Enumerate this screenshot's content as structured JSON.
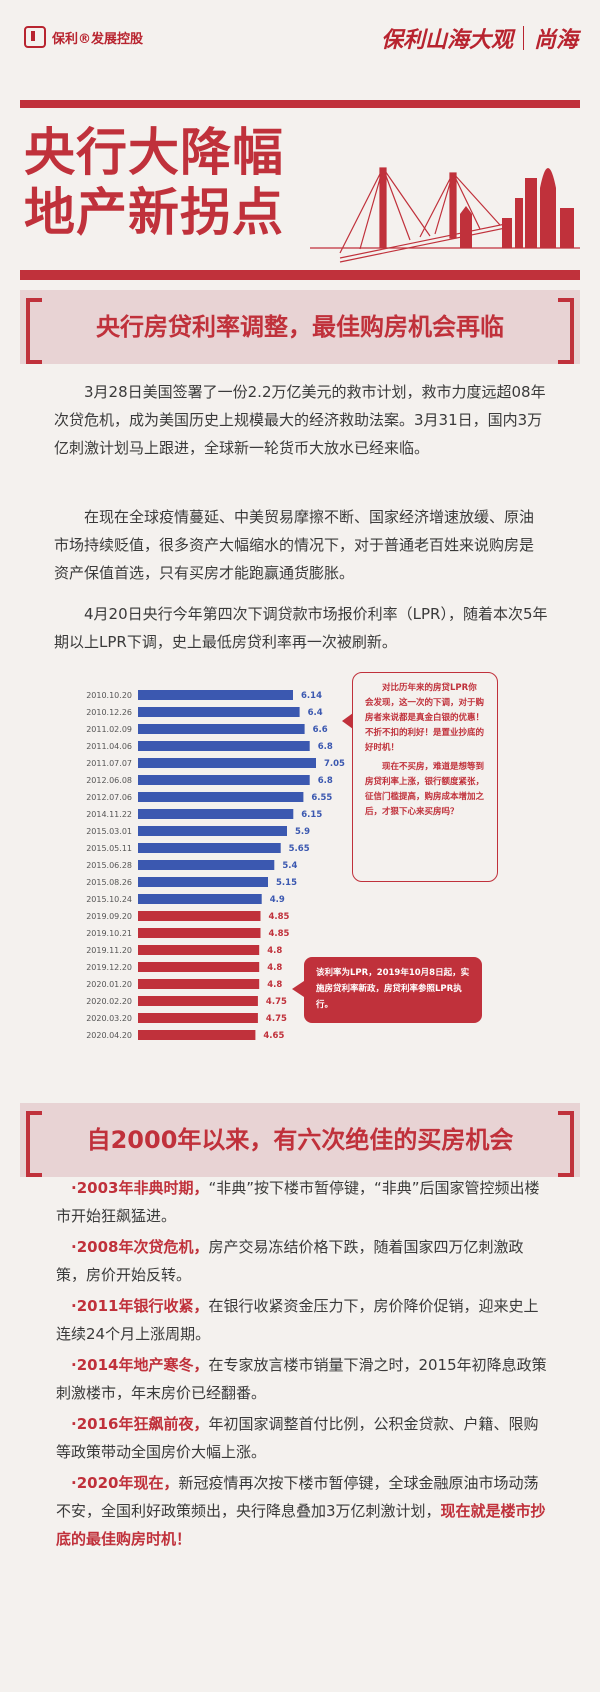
{
  "header": {
    "left_logo": "保利®发展控股",
    "right_logo_a": "保利山海大观",
    "right_logo_b": "尚海"
  },
  "hero": {
    "title_line1": "央行大降幅",
    "title_line2": "地产新拐点"
  },
  "section1": {
    "heading": "央行房贷利率调整，最佳购房机会再临",
    "paragraphs": [
      "3月28日美国签署了一份2.2万亿美元的救市计划，救市力度远超08年次贷危机，成为美国历史上规模最大的经济救助法案。3月31日，国内3万亿刺激计划马上跟进，全球新一轮货币大放水已经来临。",
      "在现在全球疫情蔓延、中美贸易摩擦不断、国家经济增速放缓、原油市场持续贬值，很多资产大幅缩水的情况下，对于普通老百姓来说购房是资产保值首选，只有买房才能跑赢通货膨胀。",
      "4月20日央行今年第四次下调贷款市场报价利率（LPR），随着本次5年期以上LPR下调，史上最低房贷利率再一次被刷新。"
    ]
  },
  "colors": {
    "accent": "#c0313b",
    "blue_series": "#3b58b0",
    "red_series": "#c0313b",
    "panel": "#e8d3d4"
  },
  "chart_data": {
    "type": "bar",
    "orientation": "horizontal",
    "categories": [
      "2010.10.20",
      "2010.12.26",
      "2011.02.09",
      "2011.04.06",
      "2011.07.07",
      "2012.06.08",
      "2012.07.06",
      "2014.11.22",
      "2015.03.01",
      "2015.05.11",
      "2015.06.28",
      "2015.08.26",
      "2015.10.24",
      "2019.09.20",
      "2019.10.21",
      "2019.11.20",
      "2019.12.20",
      "2020.01.20",
      "2020.02.20",
      "2020.03.20",
      "2020.04.20"
    ],
    "values": [
      6.14,
      6.4,
      6.6,
      6.8,
      7.05,
      6.8,
      6.55,
      6.15,
      5.9,
      5.65,
      5.4,
      5.15,
      4.9,
      4.85,
      4.85,
      4.8,
      4.8,
      4.8,
      4.75,
      4.75,
      4.65
    ],
    "labels": [
      "6.14",
      "6.4",
      "6.6",
      "6.8",
      "7.05",
      "6.8",
      "6.55",
      "6.15",
      "5.9",
      "5.65",
      "5.4",
      "5.15",
      "4.9",
      "4.85",
      "4.85",
      "4.8",
      "4.8",
      "4.8",
      "4.75",
      "4.75",
      "4.65"
    ],
    "series_colors": [
      "blue",
      "blue",
      "blue",
      "blue",
      "blue",
      "blue",
      "blue",
      "blue",
      "blue",
      "blue",
      "blue",
      "blue",
      "blue",
      "red",
      "red",
      "red",
      "red",
      "red",
      "red",
      "red",
      "red"
    ],
    "xlim": [
      0,
      7.05
    ],
    "grid": false,
    "legend": "none"
  },
  "notes": {
    "note1_p1": "对比历年来的房贷LPR你会发现，这一次的下调，对于购房者来说都是真金白银的优惠！不折不扣的利好！是置业抄底的好时机！",
    "note1_p2": "现在不买房，难道是想等到房贷利率上涨，银行额度紧张，征信门槛提高，购房成本增加之后，才狠下心来买房吗？",
    "note2": "该利率为LPR，2019年10月8日起，实施房贷利率新政，房贷利率参照LPR执行。"
  },
  "section2": {
    "heading": "自2000年以来，有六次绝佳的买房机会",
    "items": [
      {
        "hl": "·2003年非典时期，",
        "text": "“非典”按下楼市暂停键，“非典”后国家管控频出楼市开始狂飙猛进。"
      },
      {
        "hl": "·2008年次贷危机，",
        "text": "房产交易冻结价格下跌，随着国家四万亿刺激政策，房价开始反转。"
      },
      {
        "hl": "·2011年银行收紧，",
        "text": "在银行收紧资金压力下，房价降价促销，迎来史上连续24个月上涨周期。"
      },
      {
        "hl": "·2014年地产寒冬，",
        "text": "在专家放言楼市销量下滑之时，2015年初降息政策刺激楼市，年末房价已经翻番。"
      },
      {
        "hl": "·2016年狂飙前夜，",
        "text": "年初国家调整首付比例，公积金贷款、户籍、限购等政策带动全国房价大幅上涨。"
      },
      {
        "hl": "·2020年现在，",
        "text": "新冠疫情再次按下楼市暂停键，全球金融原油市场动荡不安，全国利好政策频出，央行降息叠加3万亿刺激计划，"
      }
    ],
    "closing": "现在就是楼市抄底的最佳购房时机！"
  }
}
